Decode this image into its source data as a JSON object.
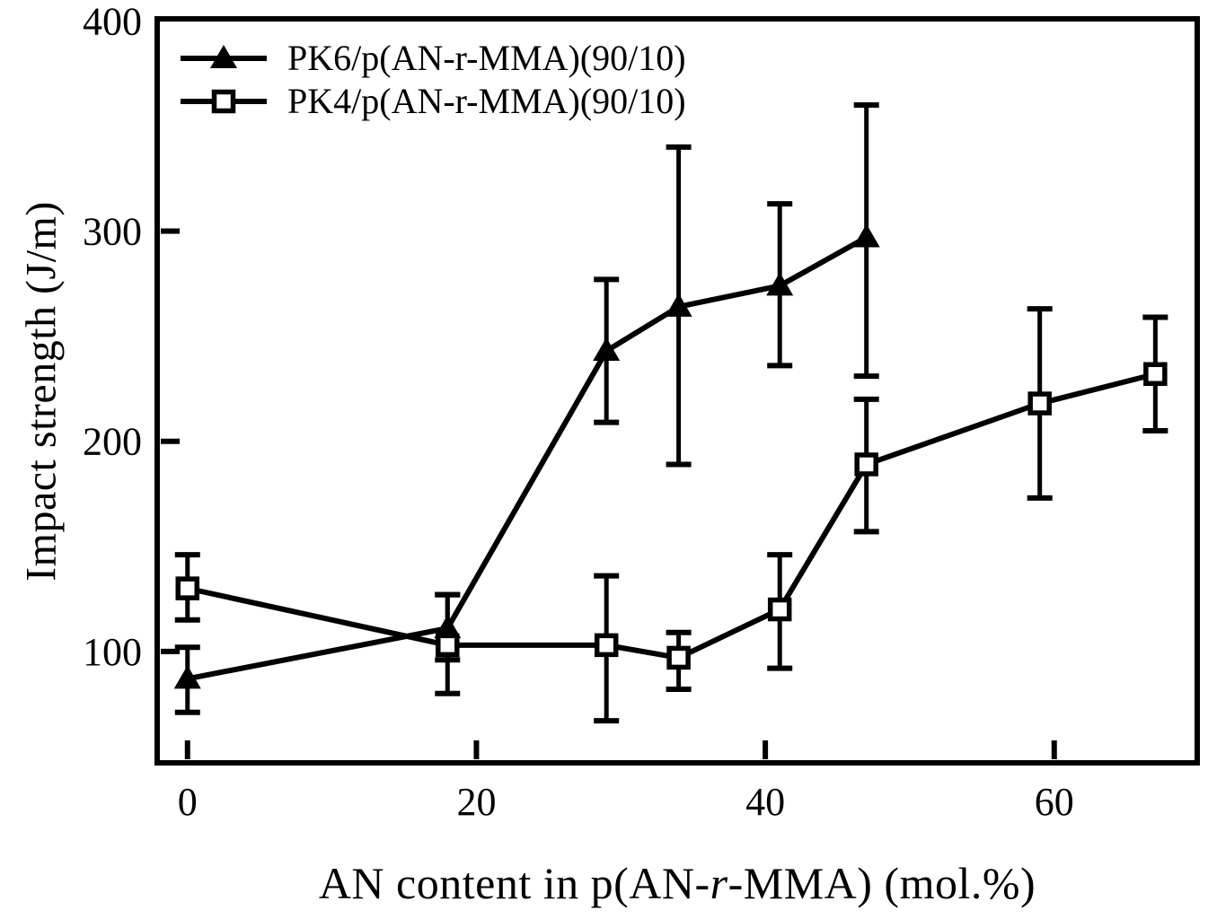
{
  "figure": {
    "background": "#ffffff",
    "ink": "#000000",
    "description": "Line chart with symmetric error bars comparing impact strength of two polyketone blends versus AN content"
  },
  "chart_data": {
    "type": "line",
    "title": "",
    "xlabel": "AN content in p(AN-r-MMA) (mol.%)",
    "xlabel_italic_token": "r",
    "ylabel": "Impact strength (J/m)",
    "xlim": [
      -2.1,
      69.9
    ],
    "ylim": [
      47,
      401
    ],
    "x_ticks": [
      0,
      20,
      40,
      60
    ],
    "y_tick_labels": [
      100,
      200,
      300,
      400
    ],
    "y_tick_marks": [
      100,
      200,
      300
    ],
    "grid": false,
    "legend_position": "upper-left-inside",
    "error_bars": true,
    "series": [
      {
        "name": "PK6/p(AN-r-MMA)(90/10)",
        "marker": "filled-triangle",
        "color": "#000000",
        "points": [
          {
            "x": 0,
            "y": 87,
            "err_plus": 15,
            "err_minus": 16
          },
          {
            "x": 18,
            "y": 111,
            "err_plus": 16,
            "err_minus": 15
          },
          {
            "x": 29,
            "y": 243,
            "err_plus": 34,
            "err_minus": 34
          },
          {
            "x": 34,
            "y": 264,
            "err_plus": 76,
            "err_minus": 75
          },
          {
            "x": 41,
            "y": 274,
            "err_plus": 39,
            "err_minus": 38
          },
          {
            "x": 47,
            "y": 297,
            "err_plus": 63,
            "err_minus": 66
          }
        ]
      },
      {
        "name": "PK4/p(AN-r-MMA)(90/10)",
        "marker": "open-square",
        "color": "#000000",
        "points": [
          {
            "x": 0,
            "y": 130,
            "err_plus": 16,
            "err_minus": 15
          },
          {
            "x": 18,
            "y": 103,
            "err_plus": 24,
            "err_minus": 23
          },
          {
            "x": 29,
            "y": 103,
            "err_plus": 33,
            "err_minus": 36
          },
          {
            "x": 34,
            "y": 97,
            "err_plus": 12,
            "err_minus": 15
          },
          {
            "x": 41,
            "y": 120,
            "err_plus": 26,
            "err_minus": 28
          },
          {
            "x": 47,
            "y": 189,
            "err_plus": 31,
            "err_minus": 32
          },
          {
            "x": 59,
            "y": 218,
            "err_plus": 45,
            "err_minus": 45
          },
          {
            "x": 67,
            "y": 232,
            "err_plus": 27,
            "err_minus": 27
          }
        ]
      }
    ]
  }
}
